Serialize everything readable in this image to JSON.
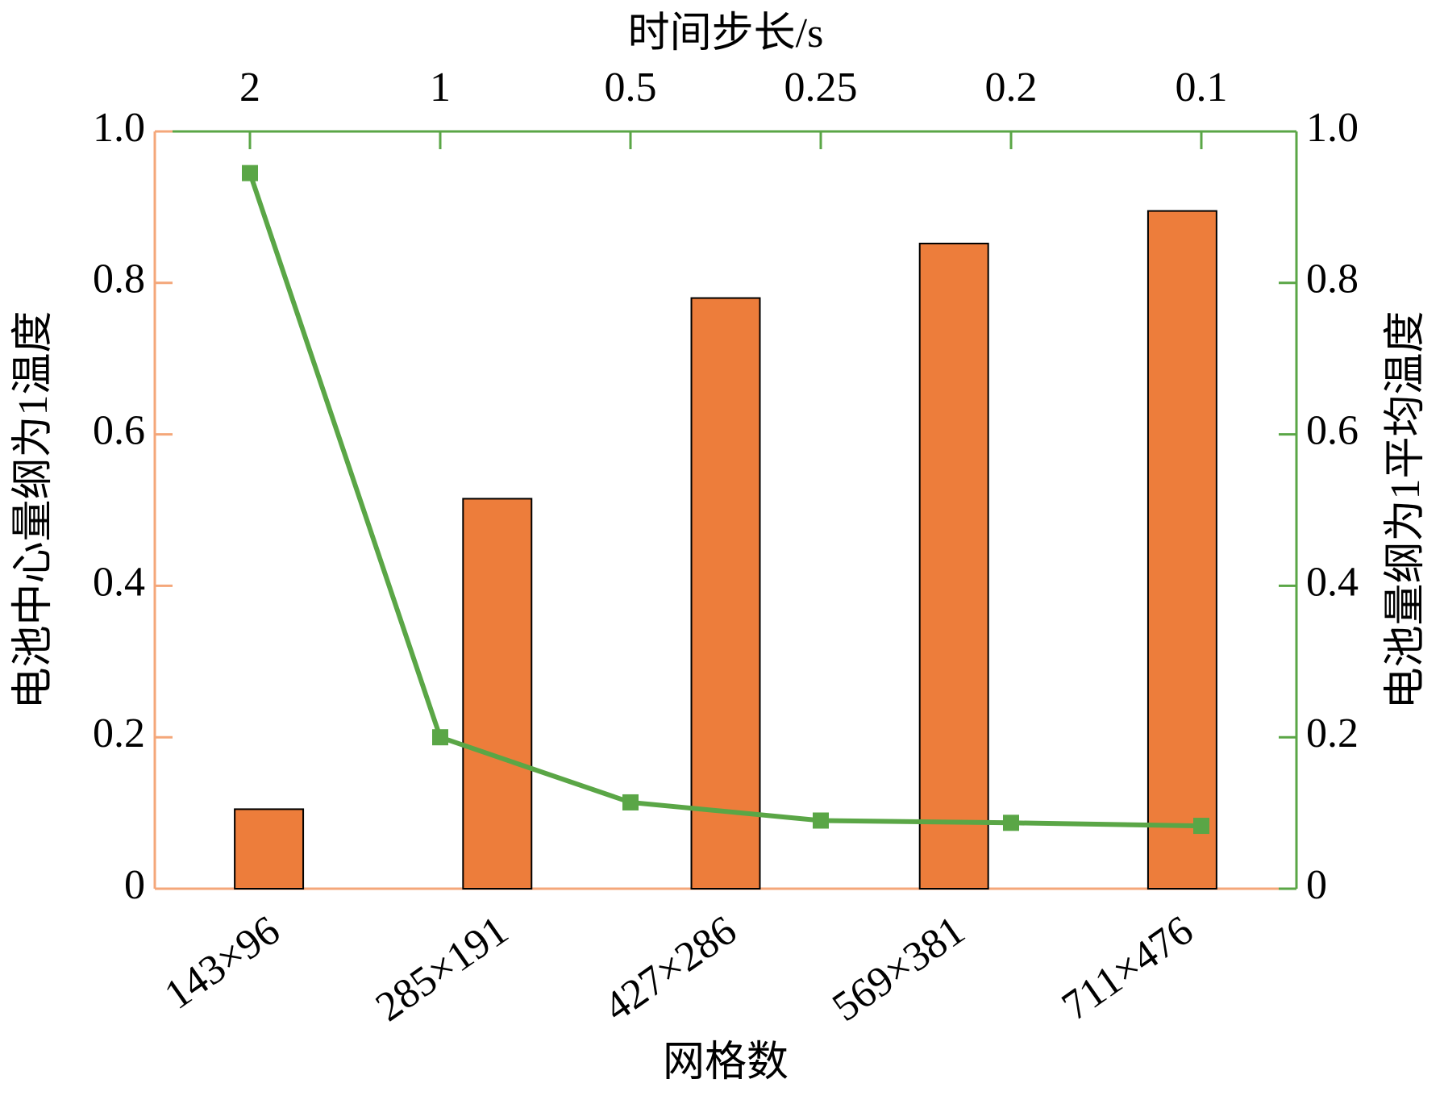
{
  "chart_data": [
    {
      "type": "bar",
      "x_label": "网格数",
      "y_label": "电池中心量纲为1温度",
      "categories": [
        "143×96",
        "285×191",
        "427×286",
        "569×381",
        "711×476"
      ],
      "values": [
        0.105,
        0.515,
        0.78,
        0.852,
        0.895
      ],
      "color": "#ed7d3b",
      "ylim": [
        0,
        1
      ],
      "yticks": [
        0,
        0.2,
        0.4,
        0.6,
        0.8,
        {
          "value": 1,
          "label": "1.0"
        }
      ]
    },
    {
      "type": "line",
      "x_label": "时间步长/s",
      "y_label": "电池量纲为1平均温度",
      "categories": [
        "2",
        "1",
        "0.5",
        "0.25",
        "0.2",
        "0.1"
      ],
      "values": [
        0.945,
        0.2,
        0.114,
        0.09,
        0.087,
        0.083
      ],
      "color": "#5aa646",
      "ylim": [
        0,
        1
      ],
      "yticks": [
        0,
        0.2,
        0.4,
        0.6,
        0.8,
        {
          "value": 1,
          "label": "1.0"
        }
      ]
    }
  ]
}
